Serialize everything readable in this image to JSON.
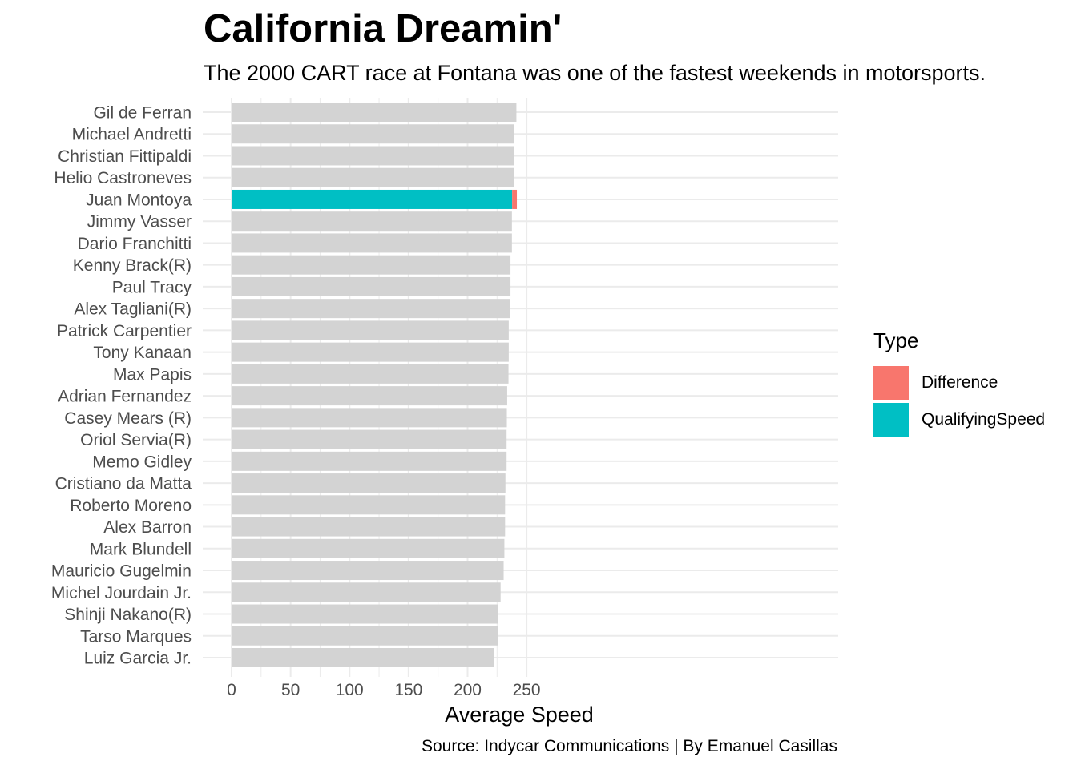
{
  "chart_data": {
    "type": "bar",
    "orientation": "horizontal",
    "stacked": true,
    "title": "California Dreamin'",
    "subtitle": "The 2000 CART race at Fontana was one of the fastest weekends in motorsports.",
    "caption": "Source: Indycar Communications | By Emanuel Casillas",
    "xlabel": "Average Speed",
    "ylabel": "",
    "xlim": [
      0,
      255
    ],
    "xticks": [
      0,
      50,
      100,
      150,
      200,
      250
    ],
    "grid": true,
    "legend": {
      "title": "Type",
      "position": "right"
    },
    "colors": {
      "Difference": "#F8766D",
      "QualifyingSpeed": "#00BFC4",
      "other": "#D3D3D3"
    },
    "highlight": "Juan Montoya",
    "categories": [
      "Gil de Ferran",
      "Michael Andretti",
      "Christian Fittipaldi",
      "Helio Castroneves",
      "Juan Montoya",
      "Jimmy Vasser",
      "Dario Franchitti",
      "Kenny Brack(R)",
      "Paul Tracy",
      "Alex Tagliani(R)",
      "Patrick Carpentier",
      "Tony Kanaan",
      "Max Papis",
      "Adrian Fernandez",
      "Casey Mears (R)",
      "Oriol Servia(R)",
      "Memo Gidley",
      "Cristiano da Matta",
      "Roberto Moreno",
      "Alex Barron",
      "Mark Blundell",
      "Mauricio Gugelmin",
      "Michel Jourdain Jr.",
      "Shinji Nakano(R)",
      "Tarso Marques",
      "Luiz Garcia Jr."
    ],
    "series": [
      {
        "name": "QualifyingSpeed",
        "values": [
          241.4,
          239.2,
          239.2,
          239.2,
          237.8,
          237.6,
          237.6,
          236.4,
          236.4,
          235.8,
          234.9,
          234.9,
          234.7,
          233.6,
          233.3,
          233.1,
          233.1,
          232.1,
          231.8,
          231.8,
          231.2,
          230.6,
          228.0,
          226.0,
          226.0,
          222.2
        ]
      },
      {
        "name": "Difference",
        "values": [
          0,
          0,
          0,
          0,
          4.0,
          0,
          0,
          0,
          0,
          0,
          0,
          0,
          0,
          0,
          0,
          0,
          0,
          0,
          0,
          0,
          0,
          0,
          0,
          0,
          0,
          0
        ]
      }
    ]
  }
}
